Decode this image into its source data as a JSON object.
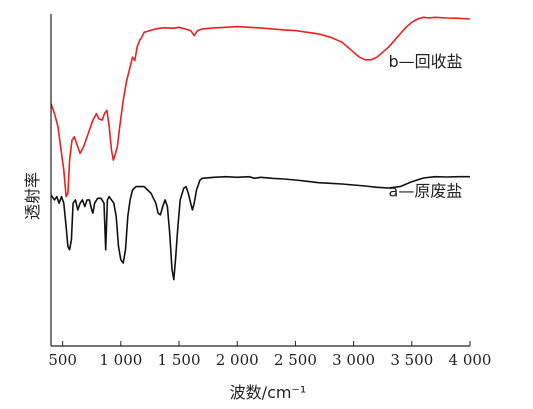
{
  "chart_data": {
    "type": "line",
    "xlabel": "波数/cm⁻¹",
    "ylabel": "透射率",
    "xlim": [
      400,
      4000
    ],
    "ylim": [
      0,
      1
    ],
    "x_ticks": [
      500,
      1000,
      1500,
      2000,
      2500,
      3000,
      3500,
      4000
    ],
    "x_tick_labels": [
      "500",
      "1 000",
      "1 500",
      "2 000",
      "2 500",
      "3 000",
      "3 500",
      "4 000"
    ],
    "grid": false,
    "y_ticks_shown": false,
    "series": [
      {
        "name": "b—回收盐",
        "color": "#e8201e",
        "points": [
          [
            400,
            0.73
          ],
          [
            430,
            0.7
          ],
          [
            460,
            0.66
          ],
          [
            490,
            0.58
          ],
          [
            510,
            0.53
          ],
          [
            530,
            0.45
          ],
          [
            545,
            0.46
          ],
          [
            560,
            0.56
          ],
          [
            580,
            0.62
          ],
          [
            600,
            0.63
          ],
          [
            620,
            0.61
          ],
          [
            650,
            0.58
          ],
          [
            680,
            0.6
          ],
          [
            720,
            0.64
          ],
          [
            760,
            0.68
          ],
          [
            790,
            0.7
          ],
          [
            810,
            0.685
          ],
          [
            840,
            0.68
          ],
          [
            860,
            0.7
          ],
          [
            880,
            0.71
          ],
          [
            900,
            0.66
          ],
          [
            920,
            0.59
          ],
          [
            935,
            0.56
          ],
          [
            950,
            0.575
          ],
          [
            970,
            0.6
          ],
          [
            990,
            0.66
          ],
          [
            1020,
            0.74
          ],
          [
            1050,
            0.8
          ],
          [
            1080,
            0.84
          ],
          [
            1100,
            0.87
          ],
          [
            1120,
            0.86
          ],
          [
            1140,
            0.9
          ],
          [
            1160,
            0.92
          ],
          [
            1180,
            0.93
          ],
          [
            1200,
            0.945
          ],
          [
            1250,
            0.95
          ],
          [
            1300,
            0.955
          ],
          [
            1350,
            0.958
          ],
          [
            1400,
            0.958
          ],
          [
            1450,
            0.957
          ],
          [
            1500,
            0.96
          ],
          [
            1550,
            0.955
          ],
          [
            1600,
            0.95
          ],
          [
            1630,
            0.935
          ],
          [
            1660,
            0.95
          ],
          [
            1700,
            0.955
          ],
          [
            1800,
            0.958
          ],
          [
            1900,
            0.96
          ],
          [
            2000,
            0.962
          ],
          [
            2100,
            0.96
          ],
          [
            2200,
            0.958
          ],
          [
            2300,
            0.955
          ],
          [
            2400,
            0.952
          ],
          [
            2500,
            0.95
          ],
          [
            2600,
            0.945
          ],
          [
            2700,
            0.94
          ],
          [
            2800,
            0.93
          ],
          [
            2900,
            0.915
          ],
          [
            2950,
            0.9
          ],
          [
            3000,
            0.885
          ],
          [
            3050,
            0.87
          ],
          [
            3100,
            0.862
          ],
          [
            3150,
            0.862
          ],
          [
            3200,
            0.87
          ],
          [
            3250,
            0.885
          ],
          [
            3300,
            0.9
          ],
          [
            3350,
            0.92
          ],
          [
            3400,
            0.94
          ],
          [
            3450,
            0.96
          ],
          [
            3500,
            0.975
          ],
          [
            3550,
            0.985
          ],
          [
            3600,
            0.99
          ],
          [
            3650,
            0.988
          ],
          [
            3700,
            0.99
          ],
          [
            3800,
            0.988
          ],
          [
            3900,
            0.987
          ],
          [
            4000,
            0.985
          ]
        ]
      },
      {
        "name": "a—原废盐",
        "color": "#111111",
        "points": [
          [
            400,
            0.455
          ],
          [
            430,
            0.44
          ],
          [
            450,
            0.45
          ],
          [
            470,
            0.43
          ],
          [
            490,
            0.45
          ],
          [
            510,
            0.43
          ],
          [
            530,
            0.36
          ],
          [
            545,
            0.3
          ],
          [
            560,
            0.29
          ],
          [
            575,
            0.32
          ],
          [
            590,
            0.43
          ],
          [
            610,
            0.44
          ],
          [
            630,
            0.41
          ],
          [
            650,
            0.43
          ],
          [
            670,
            0.44
          ],
          [
            690,
            0.42
          ],
          [
            710,
            0.44
          ],
          [
            730,
            0.44
          ],
          [
            750,
            0.41
          ],
          [
            760,
            0.4
          ],
          [
            775,
            0.43
          ],
          [
            800,
            0.445
          ],
          [
            830,
            0.445
          ],
          [
            855,
            0.43
          ],
          [
            870,
            0.29
          ],
          [
            885,
            0.44
          ],
          [
            900,
            0.45
          ],
          [
            920,
            0.44
          ],
          [
            940,
            0.43
          ],
          [
            960,
            0.39
          ],
          [
            980,
            0.3
          ],
          [
            1000,
            0.26
          ],
          [
            1020,
            0.25
          ],
          [
            1040,
            0.29
          ],
          [
            1060,
            0.39
          ],
          [
            1080,
            0.44
          ],
          [
            1100,
            0.47
          ],
          [
            1130,
            0.48
          ],
          [
            1160,
            0.48
          ],
          [
            1200,
            0.48
          ],
          [
            1230,
            0.47
          ],
          [
            1260,
            0.46
          ],
          [
            1300,
            0.43
          ],
          [
            1320,
            0.4
          ],
          [
            1340,
            0.395
          ],
          [
            1360,
            0.42
          ],
          [
            1380,
            0.44
          ],
          [
            1400,
            0.42
          ],
          [
            1420,
            0.34
          ],
          [
            1440,
            0.23
          ],
          [
            1455,
            0.2
          ],
          [
            1470,
            0.26
          ],
          [
            1490,
            0.36
          ],
          [
            1510,
            0.44
          ],
          [
            1540,
            0.475
          ],
          [
            1560,
            0.48
          ],
          [
            1580,
            0.46
          ],
          [
            1600,
            0.43
          ],
          [
            1615,
            0.41
          ],
          [
            1630,
            0.43
          ],
          [
            1650,
            0.47
          ],
          [
            1680,
            0.5
          ],
          [
            1700,
            0.505
          ],
          [
            1800,
            0.508
          ],
          [
            1900,
            0.51
          ],
          [
            2000,
            0.508
          ],
          [
            2100,
            0.51
          ],
          [
            2150,
            0.505
          ],
          [
            2200,
            0.508
          ],
          [
            2300,
            0.505
          ],
          [
            2400,
            0.503
          ],
          [
            2500,
            0.5
          ],
          [
            2600,
            0.496
          ],
          [
            2700,
            0.492
          ],
          [
            2800,
            0.49
          ],
          [
            2900,
            0.488
          ],
          [
            3000,
            0.485
          ],
          [
            3100,
            0.482
          ],
          [
            3200,
            0.478
          ],
          [
            3300,
            0.476
          ],
          [
            3400,
            0.48
          ],
          [
            3500,
            0.495
          ],
          [
            3600,
            0.506
          ],
          [
            3700,
            0.51
          ],
          [
            3800,
            0.509
          ],
          [
            3900,
            0.51
          ],
          [
            4000,
            0.51
          ]
        ]
      }
    ],
    "labels": [
      {
        "text": "b—回收盐",
        "x": 3300,
        "y": 0.84
      },
      {
        "text": "a—原废盐",
        "x": 3300,
        "y": 0.45
      }
    ]
  }
}
